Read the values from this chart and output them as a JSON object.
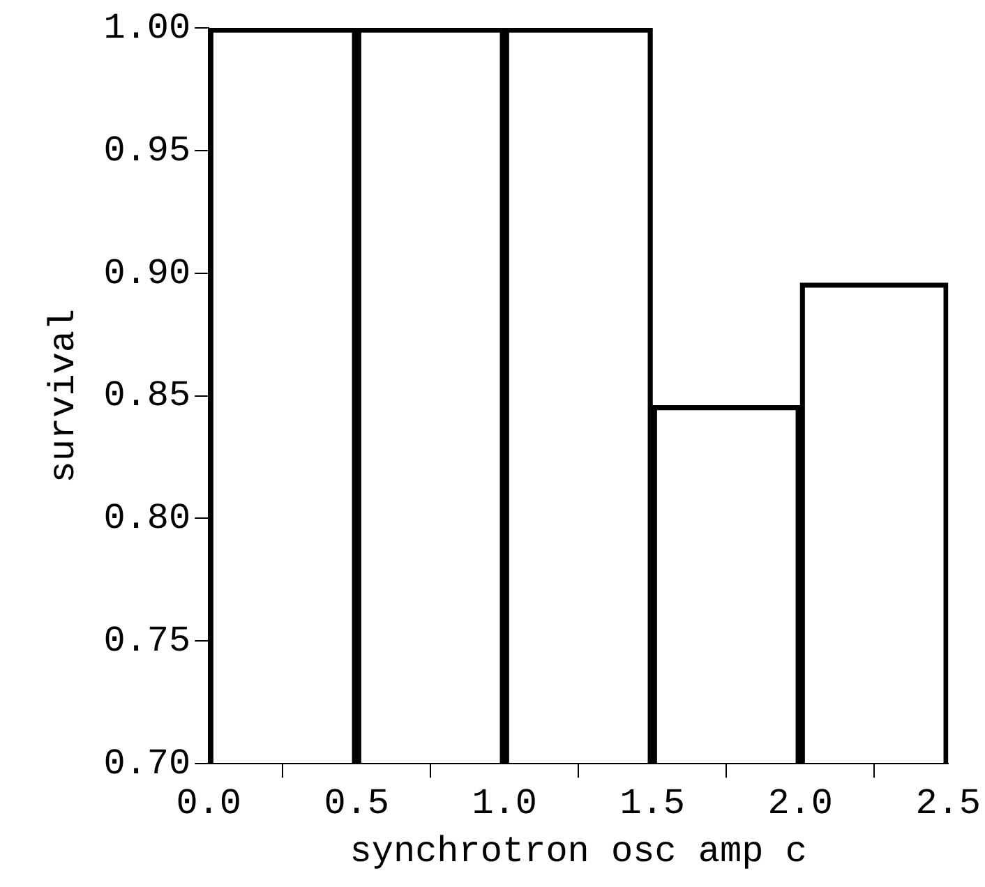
{
  "chart_data": {
    "type": "histogram",
    "xlabel": "synchrotron osc amp c",
    "ylabel": "survival",
    "bins": [
      0,
      0.5,
      1.0,
      1.5,
      2.0,
      2.5
    ],
    "values": [
      1.0,
      1.0,
      1.0,
      0.846,
      0.896
    ],
    "color": "#000000",
    "xlim": [
      0,
      2.5
    ],
    "xticks": [
      {
        "value": 0,
        "label": "0.0"
      },
      {
        "value": 0.5,
        "label": "0.5"
      },
      {
        "value": 1,
        "label": "1.0"
      },
      {
        "value": 1.5,
        "label": "1.5"
      },
      {
        "value": 2,
        "label": "2.0"
      },
      {
        "value": 2.5,
        "label": "2.5"
      }
    ],
    "ylim": [
      0.7,
      1.0
    ],
    "yticks": [
      {
        "value": 0.7,
        "label": "0.70"
      },
      {
        "value": 0.75,
        "label": "0.75"
      },
      {
        "value": 0.8,
        "label": "0.80"
      },
      {
        "value": 0.85,
        "label": "0.85"
      },
      {
        "value": 0.9,
        "label": "0.90"
      },
      {
        "value": 0.95,
        "label": "0.95"
      },
      {
        "value": 1.0,
        "label": "1.00"
      }
    ],
    "grid": false,
    "legend": false
  }
}
